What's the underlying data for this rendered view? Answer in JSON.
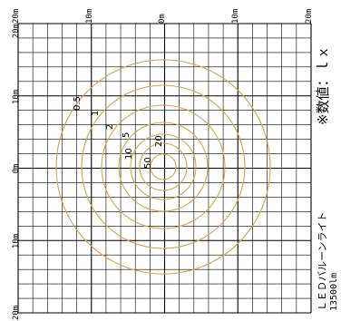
{
  "top_scale": [
    "20m",
    "10m",
    "0m",
    "10m",
    "20m"
  ],
  "left_scale": [
    "20m",
    "10m",
    "0m",
    "10m",
    "20m"
  ],
  "contour_values": [
    "0.5",
    "1",
    "2",
    "5",
    "10",
    "20",
    "50"
  ],
  "note": "※数値：ｌｘ",
  "product": {
    "name": "ＬＥＤバルーンライト",
    "lumens": "13500lm"
  },
  "colors": {
    "grid": "#000000",
    "contour": "#d9a443"
  }
}
